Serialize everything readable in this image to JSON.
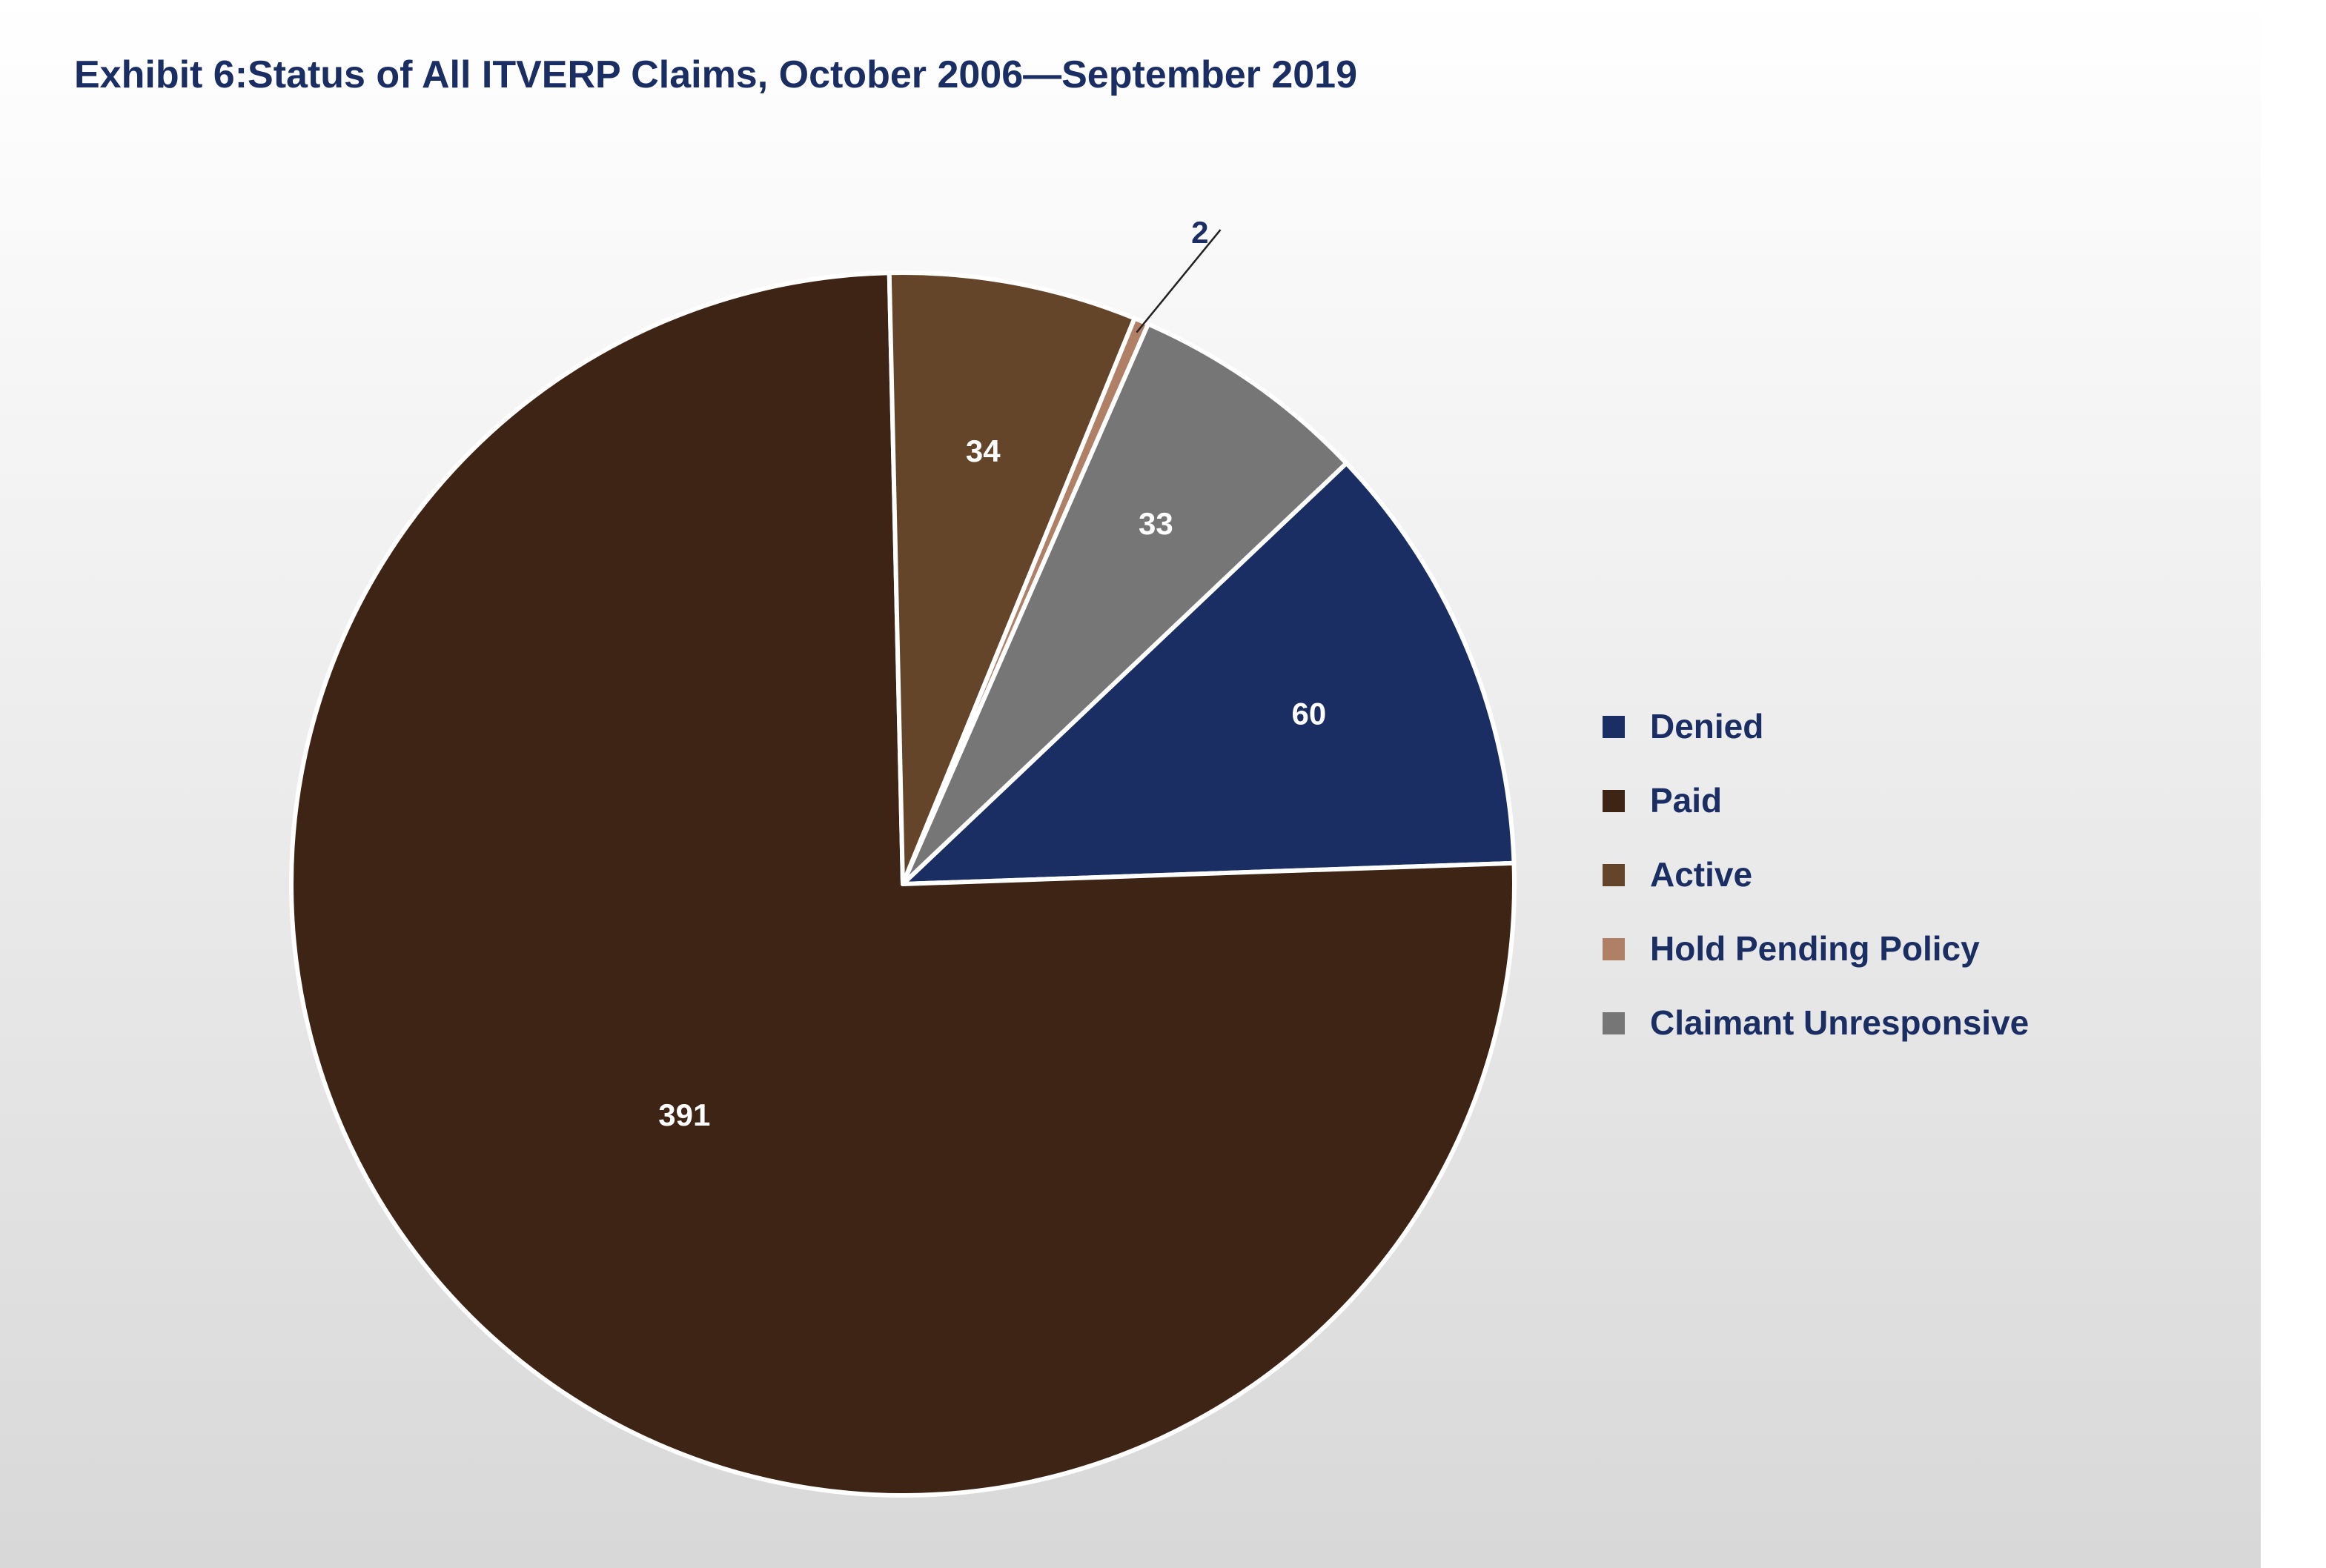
{
  "chart_data": {
    "type": "pie",
    "title": "Exhibit 6:Status of All ITVERP Claims, October 2006—September 2019",
    "categories": [
      "Denied",
      "Paid",
      "Active",
      "Hold Pending Policy",
      "Claimant Unresponsive"
    ],
    "values": [
      60,
      391,
      34,
      2,
      33
    ],
    "colors": [
      "#1a2e63",
      "#3d2415",
      "#654529",
      "#b08066",
      "#767676"
    ],
    "label_colors": [
      "#ffffff",
      "#ffffff",
      "#ffffff",
      "#1a2e63",
      "#ffffff"
    ],
    "start_angle_deg": -43.5,
    "direction": "clockwise",
    "legend_position": "right",
    "title_color": "#1a2e63",
    "legend_text_color": "#1a2e63",
    "slice_border_color": "#ffffff",
    "background_gradient": [
      "#ffffff",
      "#d8d8d8"
    ]
  }
}
